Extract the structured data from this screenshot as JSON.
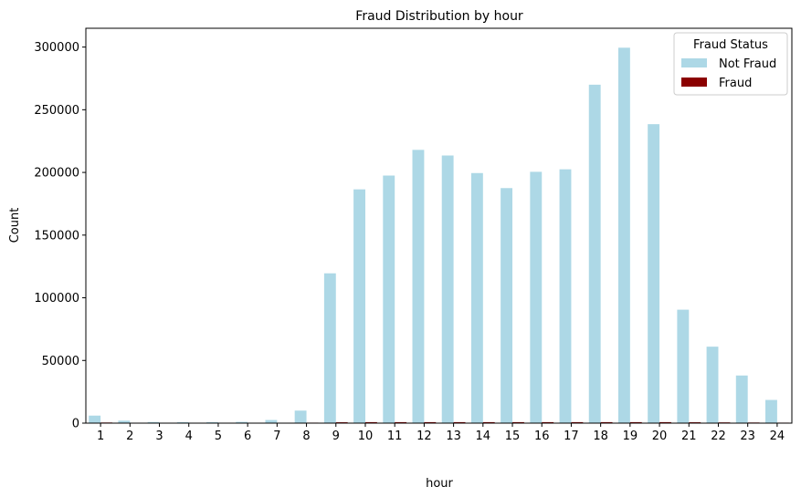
{
  "chart_data": {
    "type": "bar",
    "title": "Fraud Distribution by hour",
    "xlabel": "hour",
    "ylabel": "Count",
    "categories": [
      "1",
      "2",
      "3",
      "4",
      "5",
      "6",
      "7",
      "8",
      "9",
      "10",
      "11",
      "12",
      "13",
      "14",
      "15",
      "16",
      "17",
      "18",
      "19",
      "20",
      "21",
      "22",
      "23",
      "24"
    ],
    "ylim": [
      0,
      315000
    ],
    "yticks": [
      "0",
      "50000",
      "100000",
      "150000",
      "200000",
      "250000",
      "300000"
    ],
    "grid": false,
    "legend": {
      "title": "Fraud Status",
      "placement": "top-right"
    },
    "series": [
      {
        "name": "Not Fraud",
        "color": "#add8e6",
        "values": [
          6000,
          2000,
          900,
          800,
          800,
          1000,
          2500,
          10000,
          119500,
          186500,
          197500,
          218000,
          213500,
          199500,
          187500,
          200500,
          202500,
          270000,
          299500,
          238500,
          90500,
          61000,
          38000,
          18500
        ]
      },
      {
        "name": "Fraud",
        "color": "#8b0000",
        "values": [
          500,
          300,
          250,
          250,
          250,
          250,
          300,
          400,
          700,
          800,
          800,
          800,
          800,
          800,
          800,
          800,
          800,
          800,
          800,
          800,
          700,
          600,
          500,
          400
        ]
      }
    ]
  }
}
